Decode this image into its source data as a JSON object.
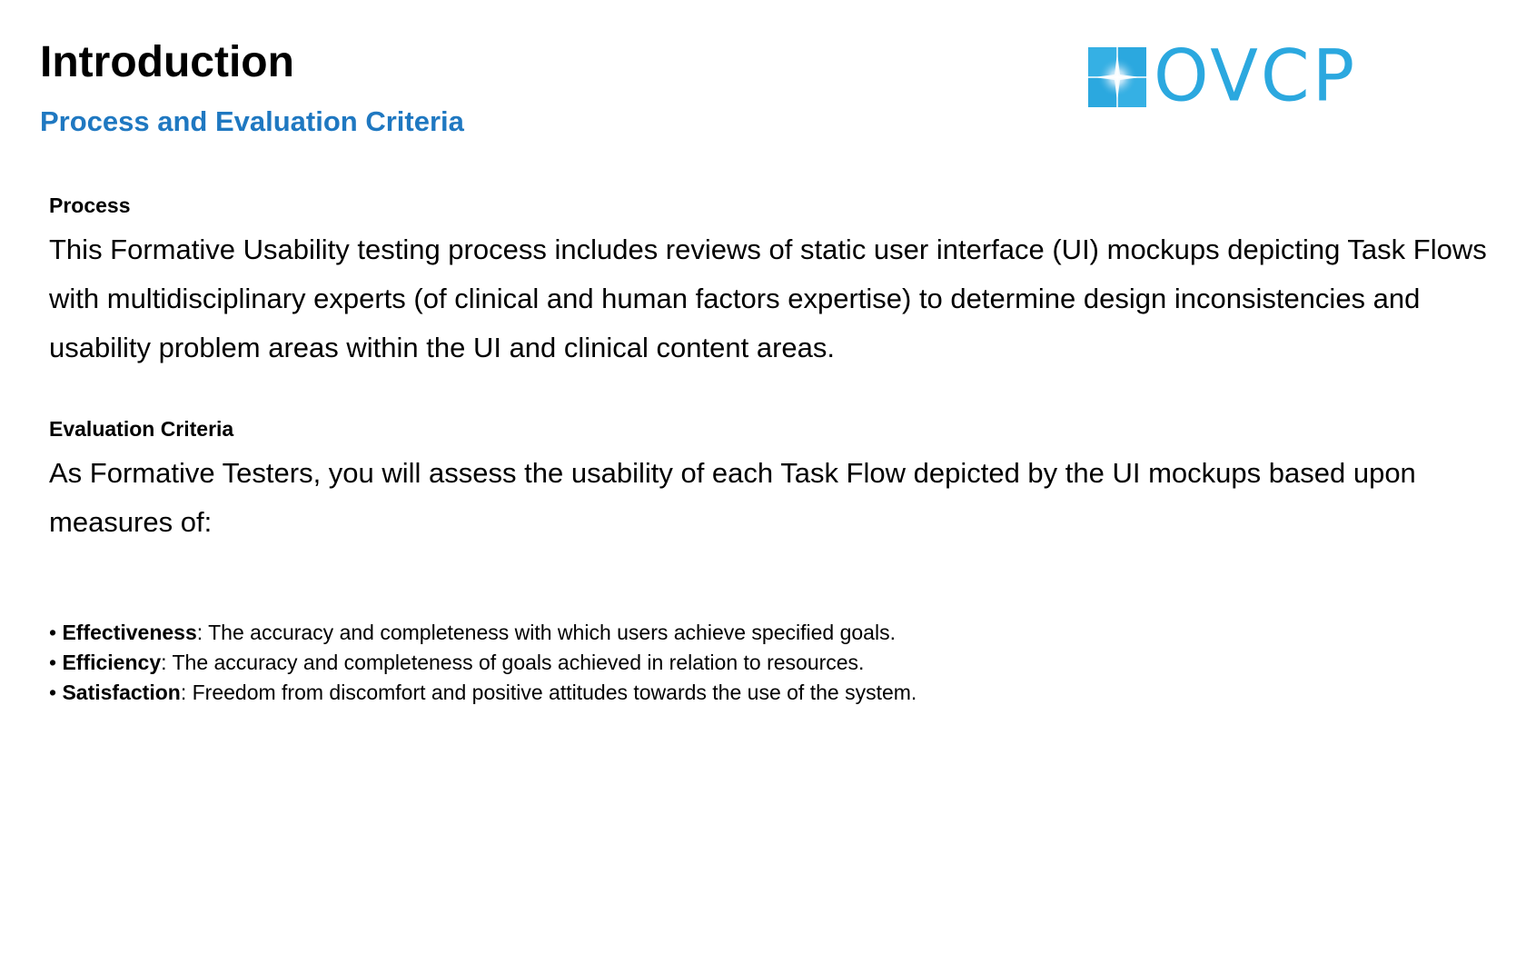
{
  "header": {
    "title": "Introduction",
    "subtitle": "Process and Evaluation Criteria"
  },
  "logo": {
    "text": "OVCP",
    "icon": "compass-star-icon",
    "color": "#2ba8df"
  },
  "sections": [
    {
      "heading": "Process",
      "body": "This Formative Usability testing process includes reviews of static user interface (UI) mockups depicting Task Flows with multidisciplinary experts (of clinical and human factors expertise) to determine design inconsistencies and usability problem areas within the UI and clinical content areas."
    },
    {
      "heading": "Evaluation Criteria",
      "body": "As Formative Testers, you will assess the usability of each Task Flow depicted by the UI mockups based upon measures of:"
    }
  ],
  "criteria": [
    {
      "bullet": "•",
      "term": "Effectiveness",
      "definition": ": The accuracy and completeness with which users achieve specified goals."
    },
    {
      "bullet": "•",
      "term": "Efficiency",
      "definition": ": The accuracy and completeness of goals achieved in relation to resources."
    },
    {
      "bullet": "•",
      "term": "Satisfaction",
      "definition": ": Freedom from discomfort and positive attitudes towards the use of the system."
    }
  ],
  "colors": {
    "subtitle": "#1f78c1",
    "text": "#000000",
    "background": "#ffffff"
  }
}
